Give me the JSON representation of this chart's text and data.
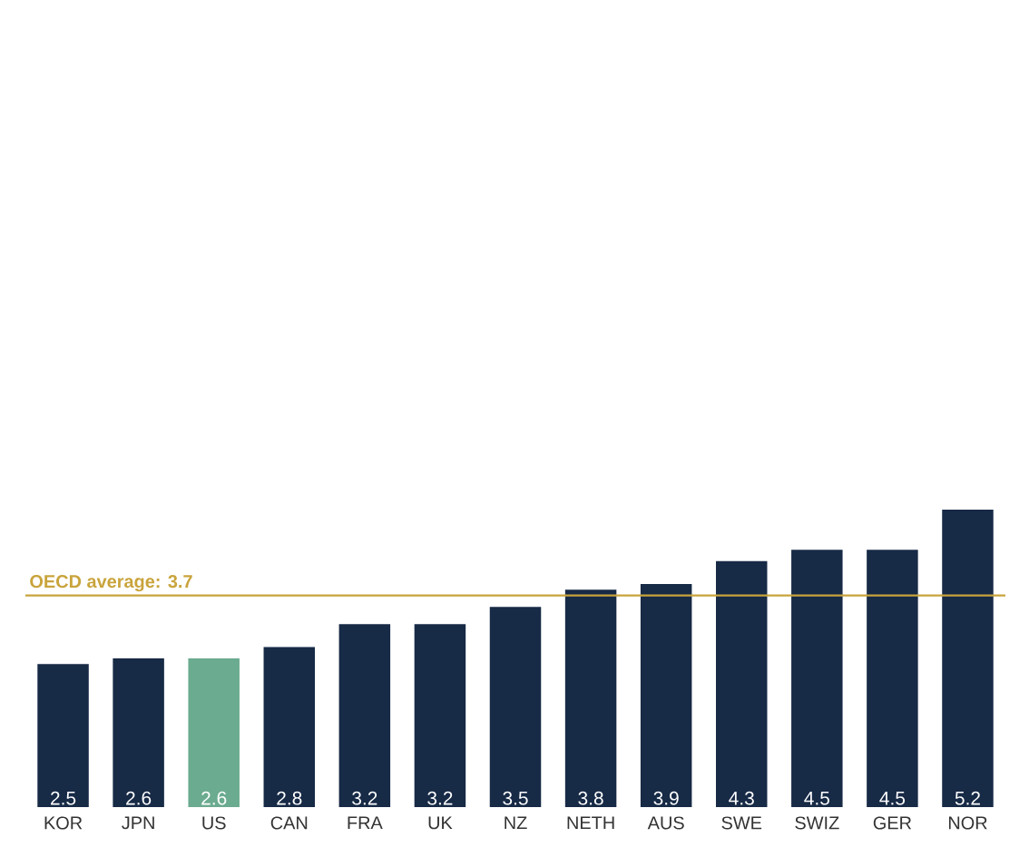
{
  "chart_data": {
    "type": "bar",
    "categories": [
      "KOR",
      "JPN",
      "US",
      "CAN",
      "FRA",
      "UK",
      "NZ",
      "NETH",
      "AUS",
      "SWE",
      "SWIZ",
      "GER",
      "NOR"
    ],
    "values": [
      2.5,
      2.6,
      2.6,
      2.8,
      3.2,
      3.2,
      3.5,
      3.8,
      3.9,
      4.3,
      4.5,
      4.5,
      5.2
    ],
    "colors": [
      "#172a46",
      "#172a46",
      "#6bab8f",
      "#172a46",
      "#172a46",
      "#172a46",
      "#172a46",
      "#172a46",
      "#172a46",
      "#172a46",
      "#172a46",
      "#172a46",
      "#172a46"
    ],
    "data_labels": true,
    "ref_lines": [
      {
        "axis": "y",
        "value": 3.7,
        "label": "OECD average: 3.7",
        "color": "#c9a43c"
      }
    ]
  }
}
